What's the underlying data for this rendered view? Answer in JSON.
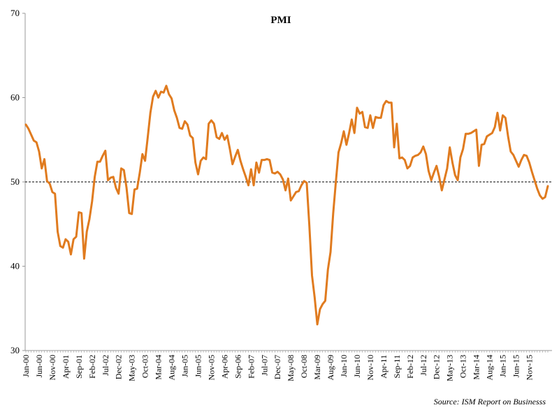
{
  "chart_data": {
    "type": "line",
    "title": "PMI",
    "xlabel": "",
    "ylabel": "",
    "source": "Source: ISM Report on Businesss",
    "ylim": [
      30,
      70
    ],
    "yticks": [
      "30",
      "40",
      "50",
      "60",
      "70"
    ],
    "reference_line": 50,
    "grid": false,
    "colors": {
      "series": "#E07B1F",
      "reference": "#000000",
      "axis": "#999999"
    },
    "x_tick_labels": [
      {
        "label": "Jan-00",
        "index": 0
      },
      {
        "label": "Jun-00",
        "index": 5
      },
      {
        "label": "Nov-00",
        "index": 10
      },
      {
        "label": "Apr-01",
        "index": 15
      },
      {
        "label": "Sep-01",
        "index": 20
      },
      {
        "label": "Feb-02",
        "index": 25
      },
      {
        "label": "Jul-02",
        "index": 30
      },
      {
        "label": "Dec-02",
        "index": 35
      },
      {
        "label": "May-03",
        "index": 40
      },
      {
        "label": "Oct-03",
        "index": 45
      },
      {
        "label": "Mar-04",
        "index": 50
      },
      {
        "label": "Aug-04",
        "index": 55
      },
      {
        "label": "Jan-05",
        "index": 60
      },
      {
        "label": "Jun-05",
        "index": 65
      },
      {
        "label": "Nov-05",
        "index": 70
      },
      {
        "label": "Apr-06",
        "index": 75
      },
      {
        "label": "Sep-06",
        "index": 80
      },
      {
        "label": "Feb-07",
        "index": 85
      },
      {
        "label": "Jul-07",
        "index": 90
      },
      {
        "label": "Dec-07",
        "index": 95
      },
      {
        "label": "May-08",
        "index": 100
      },
      {
        "label": "Oct-08",
        "index": 105
      },
      {
        "label": "Mar-09",
        "index": 110
      },
      {
        "label": "Aug-09",
        "index": 115
      },
      {
        "label": "Jan-10",
        "index": 120
      },
      {
        "label": "Jun-10",
        "index": 125
      },
      {
        "label": "Nov-10",
        "index": 130
      },
      {
        "label": "Apr-11",
        "index": 135
      },
      {
        "label": "Sep-11",
        "index": 140
      },
      {
        "label": "Feb-12",
        "index": 145
      },
      {
        "label": "Jul-12",
        "index": 150
      },
      {
        "label": "Dec-12",
        "index": 155
      },
      {
        "label": "May-13",
        "index": 160
      },
      {
        "label": "Oct-13",
        "index": 165
      },
      {
        "label": "Mar-14",
        "index": 170
      },
      {
        "label": "Aug-14",
        "index": 175
      },
      {
        "label": "Jan-15",
        "index": 180
      },
      {
        "label": "Jun-15",
        "index": 185
      },
      {
        "label": "Nov-15",
        "index": 190
      }
    ],
    "series": [
      {
        "values": [
          56.8,
          56.3,
          55.6,
          54.9,
          54.7,
          53.6,
          51.6,
          52.7,
          50.1,
          49.8,
          48.8,
          48.6,
          44.1,
          42.4,
          42.2,
          43.2,
          42.9,
          41.4,
          43.2,
          43.5,
          46.4,
          46.3,
          40.9,
          44.1,
          45.6,
          47.7,
          50.6,
          52.4,
          52.4,
          53.1,
          53.7,
          50.2,
          50.5,
          50.6,
          49.3,
          48.6,
          51.6,
          51.4,
          49.3,
          46.3,
          46.2,
          49.1,
          49.2,
          51.1,
          53.3,
          52.5,
          55.3,
          58.2,
          60.1,
          60.8,
          60.0,
          60.7,
          60.6,
          61.4,
          60.4,
          59.9,
          58.5,
          57.6,
          56.4,
          56.3,
          57.2,
          56.8,
          55.5,
          55.2,
          52.3,
          50.9,
          52.5,
          52.9,
          52.7,
          56.9,
          57.3,
          56.9,
          55.3,
          55.1,
          55.8,
          55.0,
          55.5,
          53.9,
          52.1,
          53.0,
          53.8,
          52.5,
          51.5,
          50.6,
          49.6,
          51.5,
          49.6,
          52.3,
          51.1,
          52.6,
          52.6,
          52.7,
          52.6,
          51.1,
          51.0,
          51.2,
          50.9,
          50.3,
          49.0,
          50.4,
          47.8,
          48.3,
          48.8,
          48.9,
          49.6,
          50.1,
          49.9,
          44.8,
          38.9,
          36.3,
          33.1,
          34.9,
          35.5,
          35.9,
          39.6,
          41.7,
          46.3,
          50.0,
          53.5,
          54.6,
          56.0,
          54.4,
          55.8,
          57.4,
          55.8,
          58.8,
          58.1,
          58.3,
          56.5,
          56.4,
          57.9,
          56.4,
          57.7,
          57.6,
          57.6,
          59.1,
          59.6,
          59.4,
          59.4,
          54.1,
          56.9,
          52.8,
          52.9,
          52.6,
          51.6,
          51.9,
          52.9,
          53.1,
          53.2,
          53.5,
          54.2,
          53.3,
          51.3,
          50.2,
          51.1,
          51.9,
          50.6,
          49.0,
          50.3,
          51.6,
          54.1,
          52.3,
          50.8,
          50.2,
          52.9,
          53.9,
          55.7,
          55.7,
          55.8,
          56.0,
          56.2,
          51.9,
          54.4,
          54.5,
          55.4,
          55.6,
          55.8,
          56.5,
          58.2,
          56.1,
          57.9,
          57.6,
          55.4,
          53.6,
          53.2,
          52.5,
          51.8,
          52.6,
          53.2,
          53.1,
          52.3,
          51.2,
          50.2,
          49.2,
          48.4,
          48.0,
          48.2,
          49.5
        ]
      }
    ]
  }
}
